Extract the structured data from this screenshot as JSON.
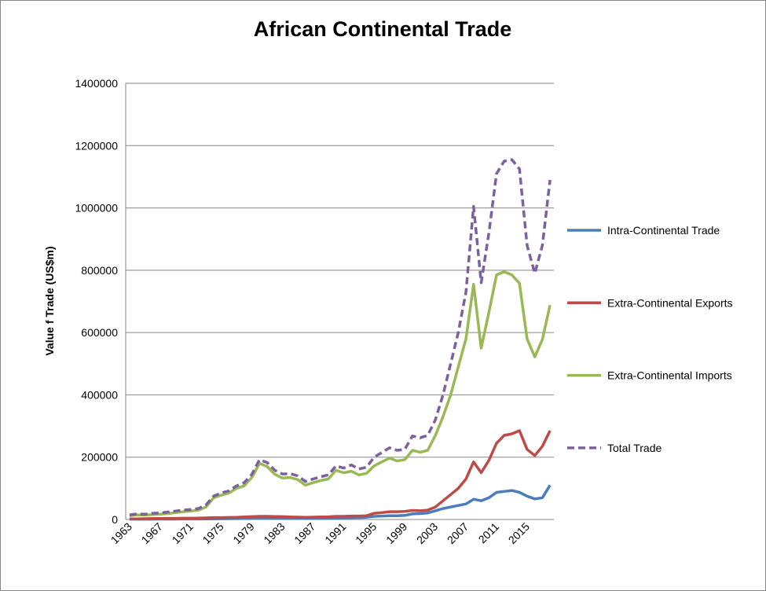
{
  "chart_data": {
    "type": "line",
    "title": "African Continental Trade",
    "y_label": "Value f Trade  (US$m)",
    "categories": [
      "1963",
      null,
      null,
      null,
      "1967",
      null,
      null,
      null,
      "1971",
      null,
      null,
      null,
      "1975",
      null,
      null,
      null,
      "1979",
      null,
      null,
      null,
      "1983",
      null,
      null,
      null,
      "1987",
      null,
      null,
      null,
      "1991",
      null,
      null,
      null,
      "1995",
      null,
      null,
      null,
      "1999",
      null,
      null,
      null,
      "2003",
      null,
      null,
      null,
      "2007",
      null,
      null,
      null,
      "2011",
      null,
      null,
      null,
      "2015",
      null,
      null,
      null
    ],
    "series": [
      {
        "name": "Intra-Continental Trade",
        "color": "#4a7ebb",
        "line_style": "solid",
        "values": [
          1000,
          1000,
          1000,
          1000,
          1200,
          1200,
          1300,
          1400,
          1500,
          1600,
          1800,
          2000,
          2200,
          2500,
          2800,
          3000,
          3500,
          4000,
          4000,
          3800,
          3600,
          3500,
          3500,
          3400,
          3600,
          3800,
          4000,
          4500,
          5000,
          5500,
          6000,
          7000,
          10000,
          11000,
          12000,
          12000,
          13000,
          18000,
          19000,
          21000,
          28000,
          35000,
          40000,
          45000,
          50000,
          65000,
          60000,
          70000,
          87000,
          90000,
          93000,
          87000,
          75000,
          66000,
          70000,
          110000
        ]
      },
      {
        "name": "Extra-Continental Exports",
        "color": "#be4b48",
        "line_style": "solid",
        "values": [
          2000,
          2000,
          2500,
          3000,
          3000,
          3500,
          3500,
          4000,
          4000,
          4500,
          5000,
          6000,
          6000,
          6500,
          7000,
          8000,
          9000,
          10000,
          10000,
          9500,
          9000,
          8000,
          7500,
          7000,
          7500,
          8000,
          8500,
          10000,
          10000,
          11000,
          11000,
          12000,
          20000,
          22000,
          25000,
          25000,
          26000,
          29000,
          28000,
          30000,
          40000,
          60000,
          80000,
          100000,
          130000,
          185000,
          150000,
          190000,
          245000,
          270000,
          275000,
          285000,
          225000,
          205000,
          235000,
          285000
        ]
      },
      {
        "name": "Extra-Continental Imports",
        "color": "#98b954",
        "line_style": "solid",
        "values": [
          12000,
          15000,
          14000,
          16000,
          17000,
          19000,
          22000,
          25000,
          27000,
          30000,
          40000,
          70000,
          78000,
          85000,
          100000,
          108000,
          135000,
          180000,
          170000,
          145000,
          133000,
          135000,
          128000,
          110000,
          118000,
          125000,
          130000,
          158000,
          150000,
          155000,
          143000,
          148000,
          172000,
          185000,
          197000,
          188000,
          192000,
          222000,
          216000,
          222000,
          270000,
          330000,
          400000,
          490000,
          580000,
          755000,
          550000,
          665000,
          785000,
          795000,
          785000,
          758000,
          580000,
          522000,
          578000,
          688000
        ]
      },
      {
        "name": "Total Trade",
        "color": "#7d60a0",
        "line_style": "dashed",
        "values": [
          15000,
          18000,
          17000,
          20000,
          21000,
          24000,
          27000,
          30000,
          32000,
          35000,
          47000,
          75000,
          85000,
          92000,
          108000,
          118000,
          145000,
          192000,
          183000,
          158000,
          146000,
          147000,
          140000,
          122000,
          130000,
          137000,
          143000,
          172000,
          165000,
          175000,
          162000,
          168000,
          200000,
          215000,
          230000,
          222000,
          225000,
          268000,
          262000,
          270000,
          320000,
          400000,
          500000,
          600000,
          730000,
          1005000,
          760000,
          920000,
          1110000,
          1150000,
          1155000,
          1125000,
          880000,
          790000,
          880000,
          1090000
        ]
      }
    ],
    "ylim": [
      0,
      1400000
    ],
    "yticks": [
      0,
      200000,
      400000,
      600000,
      800000,
      1000000,
      1200000,
      1400000
    ],
    "grid": true,
    "legend": "right"
  }
}
